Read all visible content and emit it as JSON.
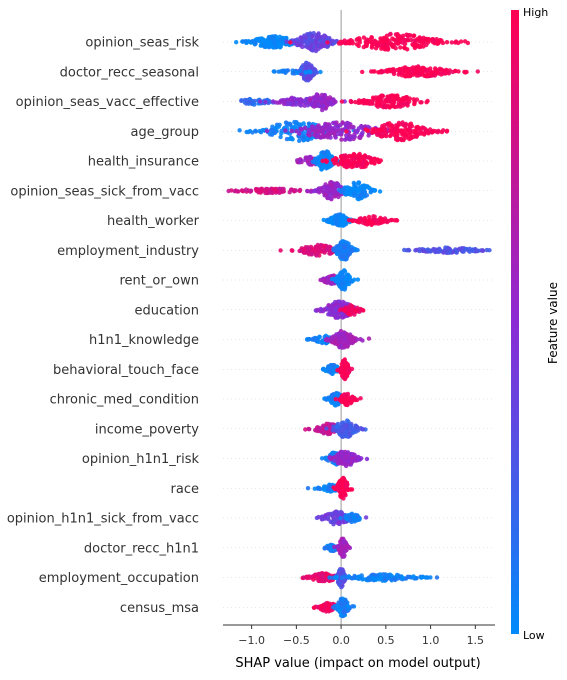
{
  "chart_data": {
    "type": "scatter",
    "subtype": "shap-beeswarm",
    "title": "",
    "xlabel": "SHAP value (impact on model output)",
    "ylabel": "",
    "xlim": [
      -1.32,
      1.72
    ],
    "xticks": [
      -1.0,
      -0.5,
      0.0,
      0.5,
      1.0,
      1.5
    ],
    "xtick_labels": [
      "−1.0",
      "−0.5",
      "0.0",
      "0.5",
      "1.0",
      "1.5"
    ],
    "zero_line": true,
    "grid": false,
    "colorbar": {
      "label": "Feature value",
      "high_label": "High",
      "low_label": "Low",
      "low_color": "#008bfb",
      "mid_color": "#8b2ad4",
      "high_color": "#ff0052"
    },
    "features": [
      {
        "name": "opinion_seas_risk",
        "clusters": [
          {
            "center": -0.75,
            "spread": 0.16,
            "height": 0.55,
            "n": 140,
            "color": 0.0
          },
          {
            "center": -0.3,
            "spread": 0.13,
            "height": 0.85,
            "n": 150,
            "color": 0.35
          },
          {
            "center": 0.58,
            "spread": 0.33,
            "height": 0.75,
            "n": 200,
            "color": 1.0
          }
        ]
      },
      {
        "name": "doctor_recc_seasonal",
        "clusters": [
          {
            "center": -0.38,
            "spread": 0.05,
            "height": 0.9,
            "n": 90,
            "color": 0.32
          },
          {
            "center": -0.55,
            "spread": 0.1,
            "height": 0.25,
            "n": 25,
            "color": 0.05
          },
          {
            "center": 0.85,
            "spread": 0.23,
            "height": 0.5,
            "n": 160,
            "color": 1.0
          }
        ]
      },
      {
        "name": "opinion_seas_vacc_effective",
        "clusters": [
          {
            "center": -0.95,
            "spread": 0.12,
            "height": 0.3,
            "n": 40,
            "color": 0.15
          },
          {
            "center": -0.45,
            "spread": 0.17,
            "height": 0.4,
            "n": 90,
            "color": 0.5
          },
          {
            "center": -0.22,
            "spread": 0.08,
            "height": 0.8,
            "n": 90,
            "color": 0.55
          },
          {
            "center": 0.55,
            "spread": 0.2,
            "height": 0.6,
            "n": 140,
            "color": 1.0
          }
        ]
      },
      {
        "name": "age_group",
        "clusters": [
          {
            "center": -0.5,
            "spread": 0.24,
            "height": 0.9,
            "n": 160,
            "color": 0.05
          },
          {
            "center": 0.0,
            "spread": 0.3,
            "height": 0.8,
            "n": 180,
            "color": 0.55
          },
          {
            "center": 0.65,
            "spread": 0.2,
            "height": 0.85,
            "n": 150,
            "color": 1.0
          }
        ]
      },
      {
        "name": "health_insurance",
        "clusters": [
          {
            "center": -0.35,
            "spread": 0.08,
            "height": 0.4,
            "n": 40,
            "color": 0.6
          },
          {
            "center": -0.18,
            "spread": 0.06,
            "height": 0.95,
            "n": 110,
            "color": 0.02
          },
          {
            "center": 0.15,
            "spread": 0.15,
            "height": 0.7,
            "n": 120,
            "color": 1.0
          }
        ]
      },
      {
        "name": "opinion_seas_sick_from_vacc",
        "clusters": [
          {
            "center": -0.8,
            "spread": 0.26,
            "height": 0.2,
            "n": 80,
            "color": 0.8
          },
          {
            "center": -0.1,
            "spread": 0.1,
            "height": 0.8,
            "n": 110,
            "color": 0.55
          },
          {
            "center": 0.18,
            "spread": 0.1,
            "height": 0.8,
            "n": 100,
            "color": 0.02
          }
        ]
      },
      {
        "name": "health_worker",
        "clusters": [
          {
            "center": -0.02,
            "spread": 0.07,
            "height": 0.6,
            "n": 100,
            "color": 0.02
          },
          {
            "center": 0.35,
            "spread": 0.12,
            "height": 0.4,
            "n": 80,
            "color": 1.0
          }
        ]
      },
      {
        "name": "employment_industry",
        "clusters": [
          {
            "center": -0.25,
            "spread": 0.14,
            "height": 0.5,
            "n": 100,
            "color": 0.85
          },
          {
            "center": 0.03,
            "spread": 0.06,
            "height": 0.9,
            "n": 100,
            "color": 0.1
          },
          {
            "center": 1.2,
            "spread": 0.22,
            "height": 0.25,
            "n": 100,
            "color": 0.3
          }
        ]
      },
      {
        "name": "rent_or_own",
        "clusters": [
          {
            "center": -0.1,
            "spread": 0.06,
            "height": 0.45,
            "n": 70,
            "color": 0.6
          },
          {
            "center": 0.03,
            "spread": 0.05,
            "height": 0.9,
            "n": 80,
            "color": 0.02
          }
        ]
      },
      {
        "name": "education",
        "clusters": [
          {
            "center": -0.02,
            "spread": 0.11,
            "height": 0.8,
            "n": 130,
            "color": 0.5
          },
          {
            "center": 0.12,
            "spread": 0.06,
            "height": 0.5,
            "n": 40,
            "color": 0.95
          }
        ]
      },
      {
        "name": "h1n1_knowledge",
        "clusters": [
          {
            "center": -0.18,
            "spread": 0.08,
            "height": 0.35,
            "n": 60,
            "color": 0.05
          },
          {
            "center": 0.02,
            "spread": 0.08,
            "height": 0.8,
            "n": 110,
            "color": 0.6
          }
        ]
      },
      {
        "name": "behavioral_touch_face",
        "clusters": [
          {
            "center": -0.1,
            "spread": 0.05,
            "height": 0.45,
            "n": 60,
            "color": 0.05
          },
          {
            "center": 0.04,
            "spread": 0.03,
            "height": 0.95,
            "n": 70,
            "color": 1.0
          }
        ]
      },
      {
        "name": "chronic_med_condition",
        "clusters": [
          {
            "center": -0.06,
            "spread": 0.05,
            "height": 0.6,
            "n": 90,
            "color": 0.05
          },
          {
            "center": 0.07,
            "spread": 0.05,
            "height": 0.6,
            "n": 70,
            "color": 1.0
          }
        ]
      },
      {
        "name": "income_poverty",
        "clusters": [
          {
            "center": -0.15,
            "spread": 0.09,
            "height": 0.5,
            "n": 70,
            "color": 0.75
          },
          {
            "center": 0.05,
            "spread": 0.08,
            "height": 0.8,
            "n": 100,
            "color": 0.25
          }
        ]
      },
      {
        "name": "opinion_h1n1_risk",
        "clusters": [
          {
            "center": -0.07,
            "spread": 0.05,
            "height": 0.6,
            "n": 70,
            "color": 0.05
          },
          {
            "center": 0.05,
            "spread": 0.08,
            "height": 0.75,
            "n": 100,
            "color": 0.55
          }
        ]
      },
      {
        "name": "race",
        "clusters": [
          {
            "center": -0.1,
            "spread": 0.08,
            "height": 0.35,
            "n": 60,
            "color": 0.05
          },
          {
            "center": 0.02,
            "spread": 0.04,
            "height": 0.95,
            "n": 90,
            "color": 1.0
          }
        ]
      },
      {
        "name": "opinion_h1n1_sick_from_vacc",
        "clusters": [
          {
            "center": -0.05,
            "spread": 0.1,
            "height": 0.6,
            "n": 100,
            "color": 0.4
          },
          {
            "center": 0.12,
            "spread": 0.06,
            "height": 0.4,
            "n": 40,
            "color": 0.05
          }
        ]
      },
      {
        "name": "doctor_recc_h1n1",
        "clusters": [
          {
            "center": -0.1,
            "spread": 0.05,
            "height": 0.3,
            "n": 50,
            "color": 0.05
          },
          {
            "center": 0.02,
            "spread": 0.03,
            "height": 0.9,
            "n": 70,
            "color": 0.6
          }
        ]
      },
      {
        "name": "employment_occupation",
        "clusters": [
          {
            "center": -0.2,
            "spread": 0.1,
            "height": 0.4,
            "n": 80,
            "color": 0.9
          },
          {
            "center": 0.0,
            "spread": 0.03,
            "height": 0.9,
            "n": 60,
            "color": 0.3
          },
          {
            "center": 0.45,
            "spread": 0.25,
            "height": 0.3,
            "n": 120,
            "color": 0.05
          }
        ]
      },
      {
        "name": "census_msa",
        "clusters": [
          {
            "center": -0.15,
            "spread": 0.08,
            "height": 0.4,
            "n": 60,
            "color": 0.95
          },
          {
            "center": 0.02,
            "spread": 0.04,
            "height": 0.9,
            "n": 90,
            "color": 0.08
          }
        ]
      }
    ]
  }
}
